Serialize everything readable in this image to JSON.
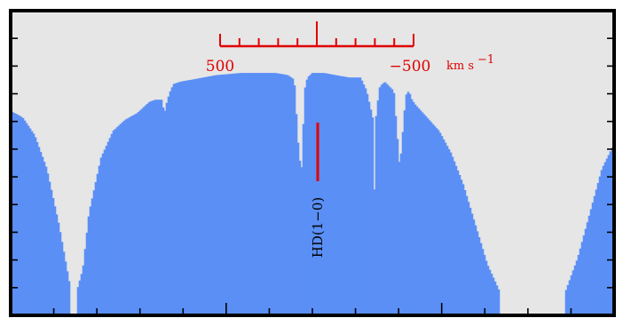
{
  "chart_data": {
    "type": "area",
    "title": "",
    "xlabel": "",
    "ylabel": "",
    "grid": false,
    "colors": {
      "fill": "#5b8ff5",
      "background": "#e6e6e6",
      "marker": "#e00000",
      "frame": "#000000"
    },
    "velocity_scale": {
      "labels": [
        "500",
        "−500"
      ],
      "unit": "km s",
      "unit_superscript": "−1",
      "values": [
        500,
        -500
      ]
    },
    "line_marker": {
      "label": "HD(1−0)"
    },
    "series": [
      {
        "x": [
          0,
          0.02,
          0.04,
          0.06,
          0.08,
          0.1,
          0.11,
          0.12,
          0.13,
          0.15,
          0.17,
          0.19,
          0.21,
          0.23,
          0.24,
          0.25,
          0.255,
          0.26,
          0.265,
          0.27,
          0.28,
          0.3,
          0.32,
          0.34,
          0.36,
          0.38,
          0.4,
          0.42,
          0.44,
          0.46,
          0.47,
          0.478,
          0.483,
          0.487,
          0.492,
          0.5,
          0.52,
          0.54,
          0.56,
          0.58,
          0.59,
          0.6,
          0.603,
          0.606,
          0.612,
          0.62,
          0.635,
          0.645,
          0.655,
          0.66,
          0.665,
          0.67,
          0.69,
          0.71,
          0.73,
          0.75,
          0.77,
          0.79,
          0.81,
          0.83,
          0.84,
          0.86,
          0.88,
          0.9,
          0.92,
          0.94,
          0.96,
          0.98,
          1.0
        ],
        "y": [
          0.81,
          0.78,
          0.7,
          0.55,
          0.3,
          0.0,
          0.0,
          0.1,
          0.35,
          0.6,
          0.72,
          0.77,
          0.8,
          0.85,
          0.86,
          0.86,
          0.8,
          0.86,
          0.9,
          0.93,
          0.94,
          0.95,
          0.96,
          0.97,
          0.975,
          0.98,
          0.98,
          0.98,
          0.98,
          0.97,
          0.95,
          0.6,
          0.55,
          0.9,
          0.96,
          0.98,
          0.98,
          0.97,
          0.96,
          0.96,
          0.9,
          0.78,
          0.45,
          0.8,
          0.92,
          0.94,
          0.9,
          0.55,
          0.88,
          0.9,
          0.86,
          0.84,
          0.78,
          0.72,
          0.62,
          0.48,
          0.3,
          0.12,
          0.0,
          0.0,
          0.0,
          0.0,
          0.0,
          0.0,
          0.0,
          0.15,
          0.35,
          0.55,
          0.66
        ]
      }
    ]
  }
}
